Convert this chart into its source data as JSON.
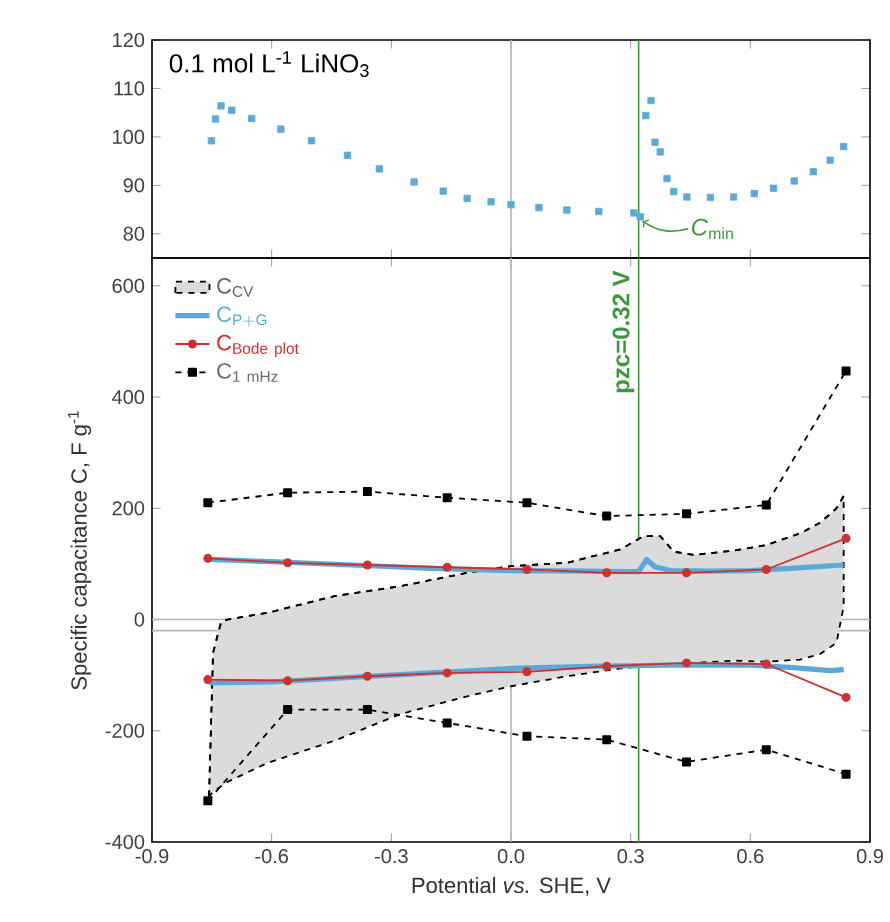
{
  "chart_data": [
    {
      "type": "scatter",
      "annotations": [
        "0.1 mol L$^{-1}$ LiNO$_{3}$",
        {
          "text": "*C*$_{min}$",
          "x": 0.324,
          "y": 83.5
        }
      ],
      "series": [
        {
          "color": "#5aaad8",
          "marker": "square",
          "x": [
            -0.751,
            -0.741,
            -0.727,
            -0.7,
            -0.65,
            -0.577,
            -0.5,
            -0.41,
            -0.33,
            -0.243,
            -0.17,
            -0.11,
            -0.05,
            0.0,
            0.07,
            0.14,
            0.22,
            0.308,
            0.324,
            0.338,
            0.351,
            0.361,
            0.374,
            0.391,
            0.408,
            0.441,
            0.5,
            0.558,
            0.61,
            0.658,
            0.71,
            0.758,
            0.8,
            0.834
          ],
          "values": [
            99.2,
            103.7,
            106.4,
            105.5,
            103.8,
            101.6,
            99.2,
            96.2,
            93.4,
            90.7,
            88.8,
            87.3,
            86.6,
            86,
            85.4,
            84.9,
            84.6,
            84.3,
            83.5,
            104.4,
            107.5,
            98.9,
            96.9,
            91.4,
            88.7,
            87.6,
            87.5,
            87.6,
            88.3,
            89.4,
            90.9,
            92.8,
            95.2,
            98.0
          ]
        }
      ],
      "xlim": [
        -0.9,
        0.9
      ],
      "ylim": [
        75,
        120
      ],
      "xticks": [
        -0.9,
        -0.6,
        -0.3,
        0,
        0.3,
        0.6,
        0.9
      ],
      "yticks": [
        80,
        90,
        100,
        110,
        120
      ],
      "tick_labels": "y",
      "ref_lines": [
        {
          "axis": "x",
          "value": 0,
          "color": "#b4b4b4"
        },
        {
          "axis": "x",
          "value": 0.32,
          "color": "#3a9a3a"
        }
      ]
    },
    {
      "type": "line",
      "xlabel": "Potential *vs.* SHE, V",
      "ylabel": "Specific capacitance C, F g$^{-1}$",
      "series": [
        {
          "name": "\\mathsf{C}_{\\mathsf{CV}}",
          "type": "line",
          "color": "#000000",
          "line_style": "dashed",
          "x": [
            -0.757,
            -0.747,
            -0.727,
            -0.711,
            -0.611,
            -0.443,
            -0.277,
            -0.11,
            0.0,
            0.14,
            0.274,
            0.333,
            0.374,
            0.408,
            0.458,
            0.558,
            0.641,
            0.725,
            0.775,
            0.816,
            0.834
          ],
          "values": [
            -318,
            -60,
            -5,
            0,
            12,
            42,
            60,
            84,
            96,
            102,
            126,
            150,
            150,
            122,
            116,
            124,
            134,
            155,
            174,
            200,
            222
          ],
          "upper": [
            -318,
            -60,
            -5,
            0,
            12,
            42,
            60,
            84,
            96,
            102,
            126,
            150,
            150,
            122,
            116,
            124,
            134,
            155,
            174,
            200,
            222
          ],
          "lower": [
            -318,
            -310,
            -300,
            -292,
            -258,
            -218,
            -170,
            -138,
            -120,
            -102,
            -88,
            -84,
            -82,
            -80,
            -78,
            -74,
            -76,
            -72,
            -62,
            -42,
            24
          ]
        },
        {
          "name": "\\mathsf{C}_{\\mathsf{P+G}}",
          "color": "#5aaad8",
          "x": [
            -0.757,
            -0.6,
            -0.4,
            -0.2,
            0.0,
            0.2,
            0.3,
            0.32,
            0.34,
            0.36,
            0.4,
            0.5,
            0.6,
            0.7,
            0.834
          ],
          "values": [
            108,
            104,
            98,
            92,
            88,
            87,
            86,
            86,
            108,
            95,
            88,
            87,
            88,
            92,
            98
          ]
        },
        {
          "color": "#5aaad8",
          "x": [
            -0.757,
            -0.6,
            -0.4,
            -0.2,
            0.0,
            0.2,
            0.4,
            0.6,
            0.7,
            0.8,
            0.834
          ],
          "values": [
            -114,
            -112,
            -104,
            -96,
            -88,
            -84,
            -82,
            -82,
            -86,
            -92,
            -90
          ]
        },
        {
          "name": "\\mathsf{C}_{\\mathsf{Bode\\ plot}}",
          "color": "#d03030",
          "marker": "circle",
          "x": [
            -0.76,
            -0.56,
            -0.36,
            -0.16,
            0.04,
            0.24,
            0.44,
            0.64,
            0.84
          ],
          "values": [
            110,
            102,
            98,
            94,
            90,
            84,
            84,
            90,
            146
          ]
        },
        {
          "color": "#d03030",
          "marker": "circle",
          "x": [
            -0.76,
            -0.56,
            -0.36,
            -0.16,
            0.04,
            0.24,
            0.44,
            0.64,
            0.84
          ],
          "values": [
            -108,
            -110,
            -102,
            -96,
            -94,
            -84,
            -78,
            -80,
            -140
          ]
        },
        {
          "name": "\\mathsf{C}_{\\mathsf{1\\ mHz}}",
          "color": "#000000",
          "marker": "square",
          "line_style": "dashed",
          "x": [
            -0.76,
            -0.56,
            -0.36,
            -0.16,
            0.04,
            0.24,
            0.44,
            0.64,
            0.84
          ],
          "values": [
            210,
            228,
            230,
            219,
            210,
            186,
            190,
            206,
            447
          ]
        },
        {
          "color": "#000000",
          "marker": "square",
          "line_style": "dashed",
          "x": [
            -0.76,
            -0.56,
            -0.36,
            -0.16,
            0.04,
            0.24,
            0.44,
            0.64,
            0.84
          ],
          "values": [
            -326,
            -162,
            -162,
            -186,
            -210,
            -216,
            -256,
            -234,
            -278
          ]
        }
      ],
      "xlim": [
        -0.9,
        0.9
      ],
      "ylim": [
        -400,
        650
      ],
      "xticks": [
        -0.9,
        -0.6,
        -0.3,
        {
          "value": 0,
          "label": "0.0"
        },
        0.3,
        0.6,
        0.9
      ],
      "yticks": [
        -400,
        -200,
        0,
        200,
        400,
        600
      ],
      "legend": "top left",
      "ref_lines": [
        {
          "axis": "x",
          "value": 0,
          "color": "#b4b4b4"
        },
        {
          "axis": "x",
          "value": 0.32,
          "color": "#3a9a3a",
          "label": "pzc=0.32 V"
        },
        {
          "axis": "y",
          "value": 0,
          "color": "#b4b4b4"
        },
        {
          "axis": "y",
          "value": -20,
          "color": "#b4b4b4"
        }
      ]
    }
  ]
}
